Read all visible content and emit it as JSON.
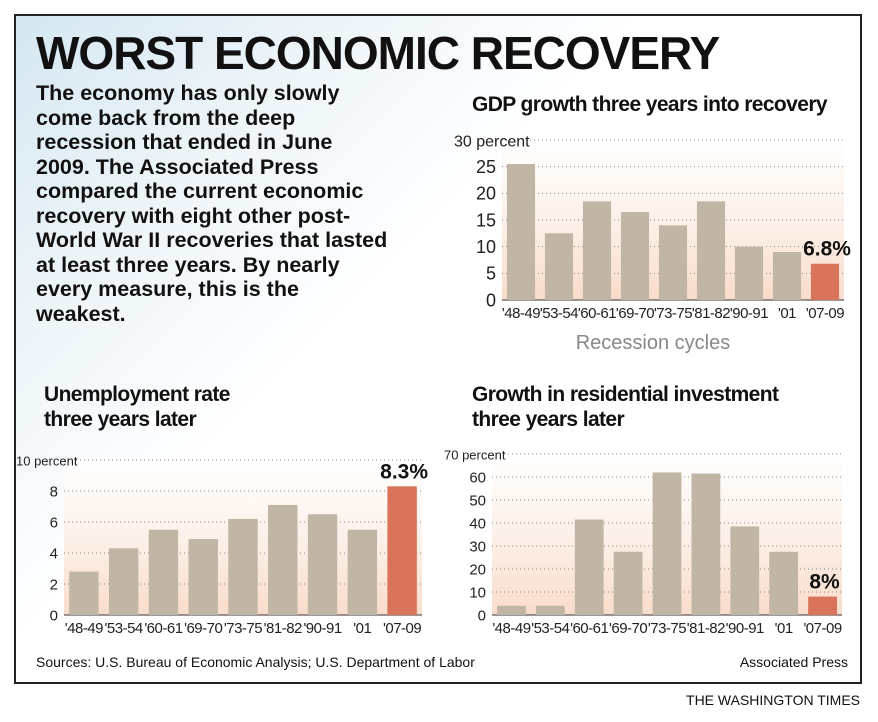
{
  "title": "WORST ECONOMIC RECOVERY",
  "intro": "The economy has only slowly come back from the deep recession that ended in June 2009. The Associated Press compared the current economic recovery with eight other post-World War II recoveries that lasted at least three years. By nearly every measure, this is the weakest.",
  "footer": {
    "sources": "Sources: U.S. Bureau of Economic Analysis; U.S. Department of Labor",
    "credit": "Associated Press",
    "publisher": "THE WASHINGTON TIMES"
  },
  "colors": {
    "bar": "#c1b5a6",
    "highlight": "#d9735a",
    "grid": "#888888"
  },
  "chart_data": [
    {
      "type": "bar",
      "title": "GDP growth three years into recovery",
      "xlabel": "Recession cycles",
      "ylabel": "",
      "categories": [
        "'48-49",
        "'53-54",
        "'60-61",
        "'69-70",
        "'73-75",
        "'81-82",
        "'90-91",
        "'01",
        "'07-09"
      ],
      "values": [
        25.5,
        12.5,
        18.5,
        16.5,
        14,
        18.5,
        10,
        9,
        6.8
      ],
      "yticks": [
        "0",
        "5",
        "10",
        "15",
        "20",
        "25",
        "30 percent"
      ],
      "ylim": [
        0,
        30
      ],
      "highlight_label": "6.8%",
      "grid": true
    },
    {
      "type": "bar",
      "title": "Unemployment rate three years later",
      "xlabel": "",
      "ylabel": "",
      "categories": [
        "'48-49",
        "'53-54",
        "'60-61",
        "'69-70",
        "'73-75",
        "'81-82",
        "'90-91",
        "'01",
        "'07-09"
      ],
      "values": [
        2.8,
        4.3,
        5.5,
        4.9,
        6.2,
        7.1,
        6.5,
        5.5,
        8.3
      ],
      "yticks": [
        "0",
        "2",
        "4",
        "6",
        "8",
        "10 percent"
      ],
      "ylim": [
        0,
        10
      ],
      "highlight_label": "8.3%",
      "grid": true
    },
    {
      "type": "bar",
      "title": "Growth in residential investment three years later",
      "xlabel": "",
      "ylabel": "",
      "categories": [
        "'48-49",
        "'53-54",
        "'60-61",
        "'69-70",
        "'73-75",
        "'81-82",
        "'90-91",
        "'01",
        "'07-09"
      ],
      "values": [
        4,
        4,
        41.5,
        27.5,
        62,
        61.5,
        38.5,
        27.5,
        8
      ],
      "yticks": [
        "0",
        "10",
        "20",
        "30",
        "40",
        "50",
        "60",
        "70 percent"
      ],
      "ylim": [
        0,
        70
      ],
      "highlight_label": "8%",
      "grid": true
    }
  ]
}
